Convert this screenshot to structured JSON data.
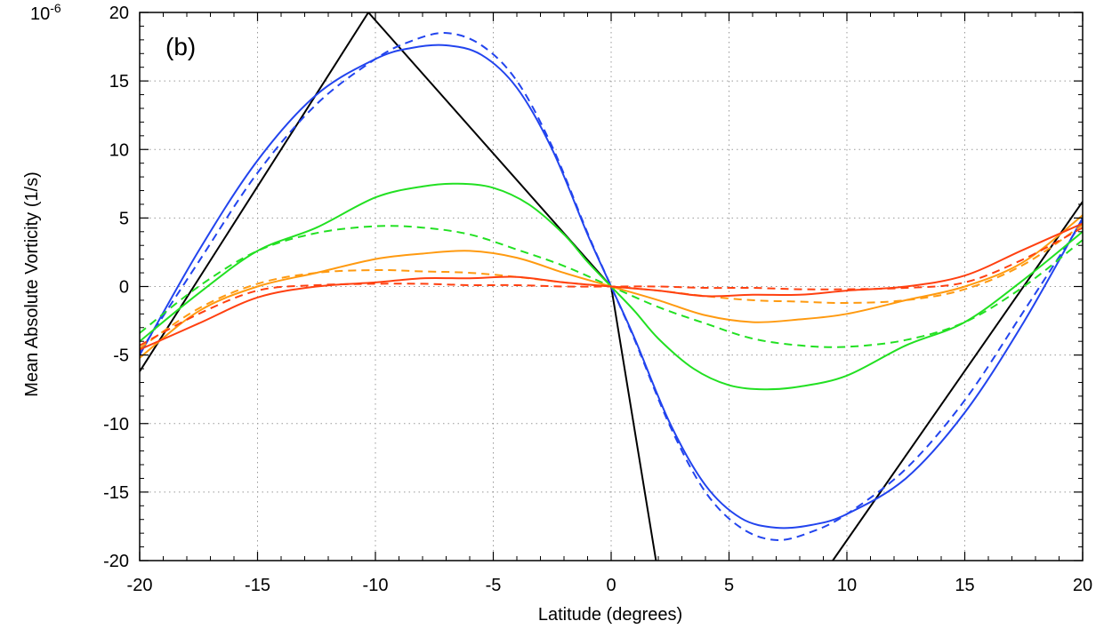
{
  "chart_data": {
    "type": "line",
    "panel_label": "(b)",
    "xlabel": "Latitude (degrees)",
    "ylabel": "Mean Absolute Vorticity (1/s)",
    "y_multiplier": "10",
    "y_multiplier_exp": "-6",
    "xlim": [
      -20,
      20
    ],
    "ylim": [
      -20,
      20
    ],
    "x_ticks": [
      -20,
      -15,
      -10,
      -5,
      0,
      5,
      10,
      15,
      20
    ],
    "y_ticks": [
      -20,
      -15,
      -10,
      -5,
      0,
      5,
      10,
      15,
      20
    ],
    "grid": true,
    "series": [
      {
        "color": "#000000",
        "dash": "solid",
        "x": [
          -20,
          -10.3,
          0,
          1.9
        ],
        "y": [
          -6.2,
          20,
          0,
          -20
        ]
      },
      {
        "color": "#000000",
        "dash": "solid",
        "x": [
          9.4,
          20
        ],
        "y": [
          -20,
          6.2
        ]
      },
      {
        "color": "#2244ee",
        "dash": "solid",
        "x": [
          -20,
          -17.5,
          -15,
          -12.5,
          -10,
          -8.5,
          -7,
          -5.5,
          -4,
          -2.5,
          -1,
          0,
          1,
          2.5,
          4,
          5.5,
          7,
          8.5,
          10,
          12.5,
          15,
          17.5,
          20
        ],
        "y": [
          -5.0,
          2.6,
          9.2,
          14.0,
          16.6,
          17.4,
          17.6,
          16.9,
          14.5,
          10.0,
          3.8,
          0,
          -3.8,
          -10.0,
          -14.5,
          -16.9,
          -17.6,
          -17.4,
          -16.6,
          -14.0,
          -9.2,
          -2.6,
          5.0
        ]
      },
      {
        "color": "#2244ee",
        "dash": "dashed",
        "x": [
          -20,
          -17.5,
          -15,
          -12.5,
          -10,
          -8.5,
          -7,
          -5.5,
          -4,
          -2.5,
          -1,
          0,
          1,
          2.5,
          4,
          5.5,
          7,
          8.5,
          10,
          12.5,
          15,
          17.5,
          20
        ],
        "y": [
          -4.8,
          1.8,
          8.3,
          13.3,
          16.6,
          17.9,
          18.5,
          17.6,
          15.0,
          10.2,
          3.9,
          0,
          -3.9,
          -10.2,
          -15.0,
          -17.6,
          -18.5,
          -17.9,
          -16.6,
          -13.3,
          -8.3,
          -1.8,
          4.8
        ]
      },
      {
        "color": "#22e022",
        "dash": "solid",
        "x": [
          -20,
          -17.5,
          -15,
          -12.5,
          -10,
          -8,
          -6.5,
          -5,
          -3.5,
          -2,
          -1,
          0,
          1,
          2,
          3.5,
          5,
          6.5,
          8,
          10,
          12.5,
          15,
          17.5,
          20
        ],
        "y": [
          -4.0,
          -0.5,
          2.6,
          4.3,
          6.5,
          7.3,
          7.5,
          7.2,
          6.0,
          3.8,
          1.8,
          0,
          -1.8,
          -3.8,
          -6.0,
          -7.2,
          -7.5,
          -7.3,
          -6.5,
          -4.3,
          -2.6,
          0.5,
          4.0
        ]
      },
      {
        "color": "#22e022",
        "dash": "dashed",
        "x": [
          -20,
          -17.5,
          -15,
          -12.5,
          -10,
          -8,
          -6,
          -4,
          -2,
          0,
          2,
          4,
          6,
          8,
          10,
          12.5,
          15,
          17.5,
          20
        ],
        "y": [
          -3.4,
          0.0,
          2.6,
          3.9,
          4.4,
          4.3,
          3.8,
          2.7,
          1.5,
          0,
          -1.5,
          -2.7,
          -3.8,
          -4.3,
          -4.4,
          -3.9,
          -2.6,
          0.0,
          3.4
        ]
      },
      {
        "color": "#ff9a10",
        "dash": "solid",
        "x": [
          -20,
          -17.5,
          -15,
          -12.5,
          -10,
          -8,
          -6,
          -4,
          -2,
          0,
          2,
          4,
          6,
          8,
          10,
          12.5,
          15,
          17.5,
          20
        ],
        "y": [
          -5.2,
          -1.8,
          0.0,
          1.0,
          2.0,
          2.4,
          2.6,
          2.1,
          1.0,
          0,
          -1.0,
          -2.1,
          -2.6,
          -2.4,
          -2.0,
          -1.0,
          0.0,
          1.8,
          5.2
        ]
      },
      {
        "color": "#ff9a10",
        "dash": "dashed",
        "x": [
          -20,
          -17.5,
          -15,
          -12.5,
          -10,
          -8,
          -6,
          -4,
          -2,
          0,
          2,
          4,
          6,
          8,
          10,
          12.5,
          15,
          17.5,
          20
        ],
        "y": [
          -4.5,
          -1.6,
          0.2,
          1.0,
          1.2,
          1.1,
          1.0,
          0.7,
          0.3,
          0,
          -0.3,
          -0.7,
          -1.0,
          -1.1,
          -1.2,
          -1.0,
          -0.2,
          1.6,
          4.5
        ]
      },
      {
        "color": "#ff4010",
        "dash": "solid",
        "x": [
          -20,
          -17.5,
          -15,
          -12.5,
          -10,
          -8,
          -6,
          -4,
          -2,
          0,
          2,
          4,
          6,
          8,
          10,
          12.5,
          15,
          17.5,
          20
        ],
        "y": [
          -4.6,
          -2.7,
          -0.8,
          0.0,
          0.3,
          0.6,
          0.6,
          0.7,
          0.3,
          0,
          -0.3,
          -0.7,
          -0.6,
          -0.6,
          -0.3,
          0.0,
          0.8,
          2.7,
          4.6
        ]
      },
      {
        "color": "#ff4010",
        "dash": "dashed",
        "x": [
          -20,
          -17.5,
          -15,
          -12.5,
          -10,
          -8,
          -6,
          -4,
          -2,
          0,
          2,
          4,
          6,
          8,
          10,
          12.5,
          15,
          17.5,
          20
        ],
        "y": [
          -4.3,
          -2.0,
          -0.3,
          0.1,
          0.2,
          0.2,
          0.1,
          0.1,
          0.0,
          0,
          0.0,
          -0.1,
          -0.1,
          -0.2,
          -0.2,
          -0.1,
          0.3,
          2.0,
          4.3
        ]
      }
    ]
  }
}
